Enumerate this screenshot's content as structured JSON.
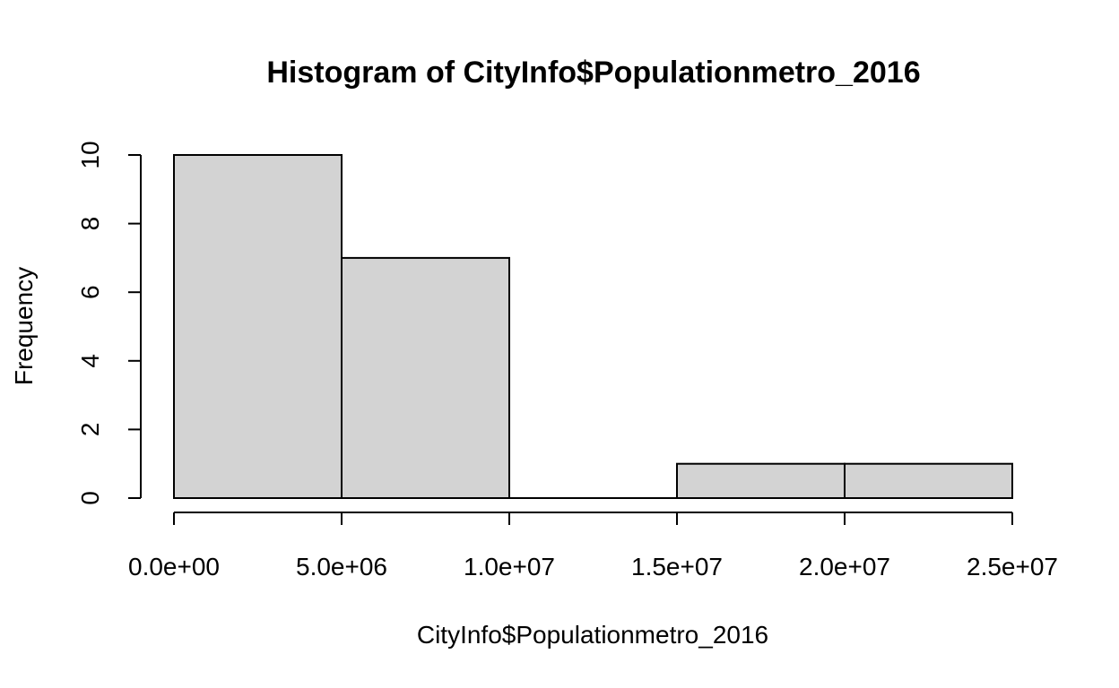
{
  "chart_data": {
    "type": "bar",
    "title": "Histogram of CityInfo$Populationmetro_2016",
    "xlabel": "CityInfo$Populationmetro_2016",
    "ylabel": "Frequency",
    "bins": [
      {
        "start": 0,
        "end": 5000000,
        "count": 10
      },
      {
        "start": 5000000,
        "end": 10000000,
        "count": 7
      },
      {
        "start": 10000000,
        "end": 15000000,
        "count": 0
      },
      {
        "start": 15000000,
        "end": 20000000,
        "count": 1
      },
      {
        "start": 20000000,
        "end": 25000000,
        "count": 1
      }
    ],
    "xlim": [
      0,
      25000000
    ],
    "ylim": [
      0,
      10
    ],
    "x_ticks": [
      {
        "value": 0,
        "label": "0.0e+00"
      },
      {
        "value": 5000000,
        "label": "5.0e+06"
      },
      {
        "value": 10000000,
        "label": "1.0e+07"
      },
      {
        "value": 15000000,
        "label": "1.5e+07"
      },
      {
        "value": 20000000,
        "label": "2.0e+07"
      },
      {
        "value": 25000000,
        "label": "2.5e+07"
      }
    ],
    "y_ticks": [
      {
        "value": 0,
        "label": "0"
      },
      {
        "value": 2,
        "label": "2"
      },
      {
        "value": 4,
        "label": "4"
      },
      {
        "value": 6,
        "label": "6"
      },
      {
        "value": 8,
        "label": "8"
      },
      {
        "value": 10,
        "label": "10"
      }
    ],
    "grid": false,
    "bar_fill": "#d3d3d3",
    "bar_stroke": "#000000"
  }
}
